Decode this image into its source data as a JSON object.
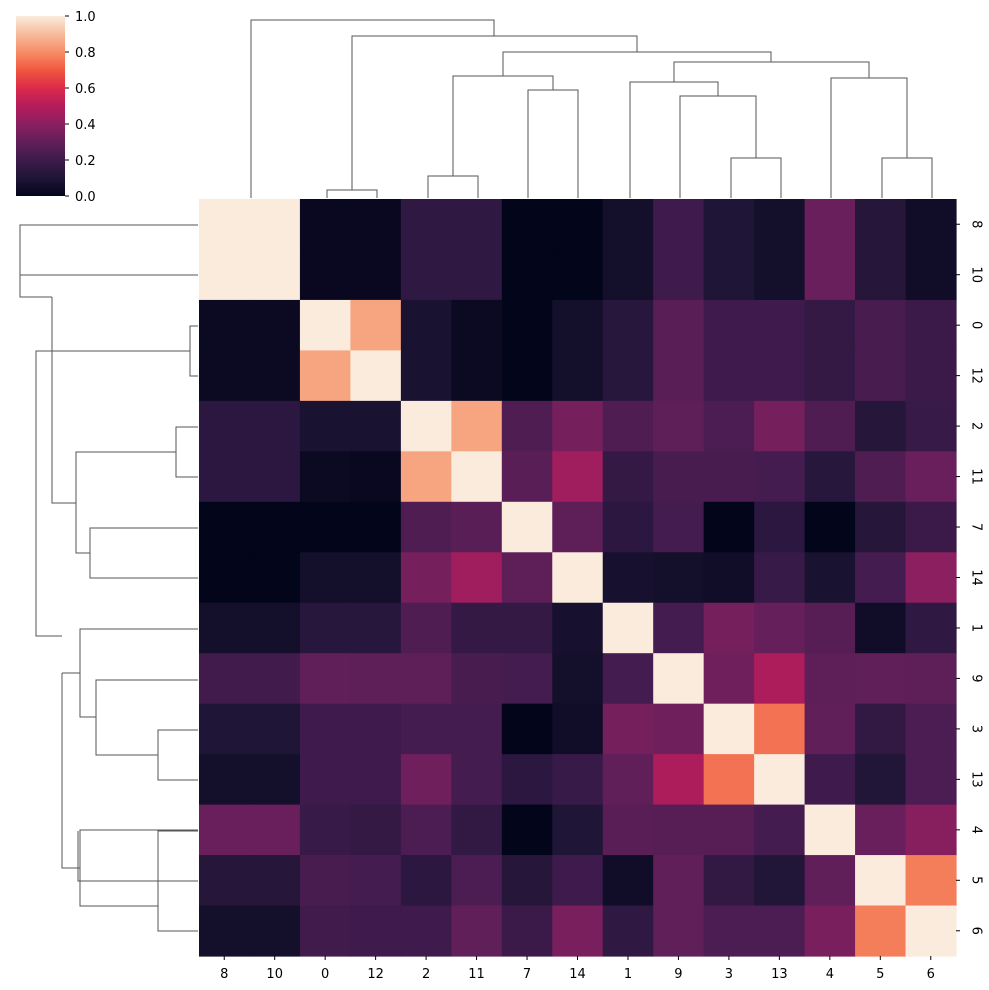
{
  "chart_data": {
    "type": "heatmap",
    "title": "",
    "xlabel": "",
    "ylabel": "",
    "order": [
      "8",
      "10",
      "0",
      "12",
      "2",
      "11",
      "7",
      "14",
      "1",
      "9",
      "3",
      "13",
      "4",
      "5",
      "6"
    ],
    "colorbar": {
      "min": 0.0,
      "max": 1.0,
      "ticks": [
        "0.0",
        "0.2",
        "0.4",
        "0.6",
        "0.8",
        "1.0"
      ],
      "colormap": "rocket"
    },
    "matrix": [
      [
        1.0,
        1.0,
        0.02,
        0.02,
        0.15,
        0.15,
        0.0,
        0.0,
        0.06,
        0.2,
        0.1,
        0.06,
        0.32,
        0.12,
        0.05
      ],
      [
        1.0,
        1.0,
        0.02,
        0.02,
        0.15,
        0.15,
        0.0,
        0.0,
        0.06,
        0.2,
        0.1,
        0.06,
        0.32,
        0.12,
        0.05
      ],
      [
        0.03,
        0.03,
        1.0,
        0.85,
        0.08,
        0.03,
        0.0,
        0.06,
        0.13,
        0.28,
        0.2,
        0.2,
        0.17,
        0.23,
        0.19
      ],
      [
        0.03,
        0.03,
        0.85,
        1.0,
        0.08,
        0.03,
        0.0,
        0.06,
        0.13,
        0.28,
        0.2,
        0.2,
        0.17,
        0.23,
        0.19
      ],
      [
        0.14,
        0.14,
        0.08,
        0.08,
        1.0,
        0.85,
        0.25,
        0.35,
        0.25,
        0.29,
        0.24,
        0.35,
        0.25,
        0.12,
        0.18
      ],
      [
        0.14,
        0.14,
        0.03,
        0.02,
        0.85,
        1.0,
        0.28,
        0.45,
        0.17,
        0.23,
        0.23,
        0.22,
        0.13,
        0.25,
        0.32
      ],
      [
        0.0,
        0.0,
        0.0,
        0.0,
        0.25,
        0.28,
        1.0,
        0.29,
        0.14,
        0.22,
        0.0,
        0.14,
        0.0,
        0.12,
        0.19
      ],
      [
        0.0,
        0.0,
        0.06,
        0.06,
        0.35,
        0.45,
        0.29,
        1.0,
        0.07,
        0.06,
        0.05,
        0.18,
        0.08,
        0.22,
        0.4
      ],
      [
        0.06,
        0.06,
        0.13,
        0.13,
        0.25,
        0.17,
        0.17,
        0.07,
        1.0,
        0.22,
        0.35,
        0.31,
        0.27,
        0.05,
        0.15
      ],
      [
        0.21,
        0.21,
        0.3,
        0.29,
        0.29,
        0.23,
        0.22,
        0.06,
        0.22,
        1.0,
        0.33,
        0.48,
        0.29,
        0.3,
        0.29
      ],
      [
        0.1,
        0.1,
        0.2,
        0.2,
        0.22,
        0.22,
        0.0,
        0.05,
        0.35,
        0.33,
        1.0,
        0.75,
        0.3,
        0.16,
        0.24
      ],
      [
        0.06,
        0.06,
        0.2,
        0.2,
        0.33,
        0.22,
        0.14,
        0.18,
        0.3,
        0.48,
        0.75,
        1.0,
        0.2,
        0.11,
        0.24
      ],
      [
        0.32,
        0.32,
        0.18,
        0.17,
        0.24,
        0.16,
        0.0,
        0.1,
        0.28,
        0.27,
        0.27,
        0.22,
        1.0,
        0.32,
        0.39
      ],
      [
        0.12,
        0.12,
        0.23,
        0.22,
        0.14,
        0.24,
        0.12,
        0.2,
        0.05,
        0.3,
        0.16,
        0.11,
        0.3,
        1.0,
        0.77
      ],
      [
        0.06,
        0.06,
        0.21,
        0.2,
        0.2,
        0.3,
        0.19,
        0.36,
        0.15,
        0.3,
        0.24,
        0.24,
        0.36,
        0.77,
        1.0
      ]
    ]
  },
  "row_labels": [
    "8",
    "10",
    "0",
    "12",
    "2",
    "11",
    "7",
    "14",
    "1",
    "9",
    "3",
    "13",
    "4",
    "5",
    "6"
  ],
  "col_labels": [
    "8",
    "10",
    "0",
    "12",
    "2",
    "11",
    "7",
    "14",
    "1",
    "9",
    "3",
    "13",
    "4",
    "5",
    "6"
  ],
  "colorbar_labels": [
    "0.0",
    "0.2",
    "0.4",
    "0.6",
    "0.8",
    "1.0"
  ]
}
